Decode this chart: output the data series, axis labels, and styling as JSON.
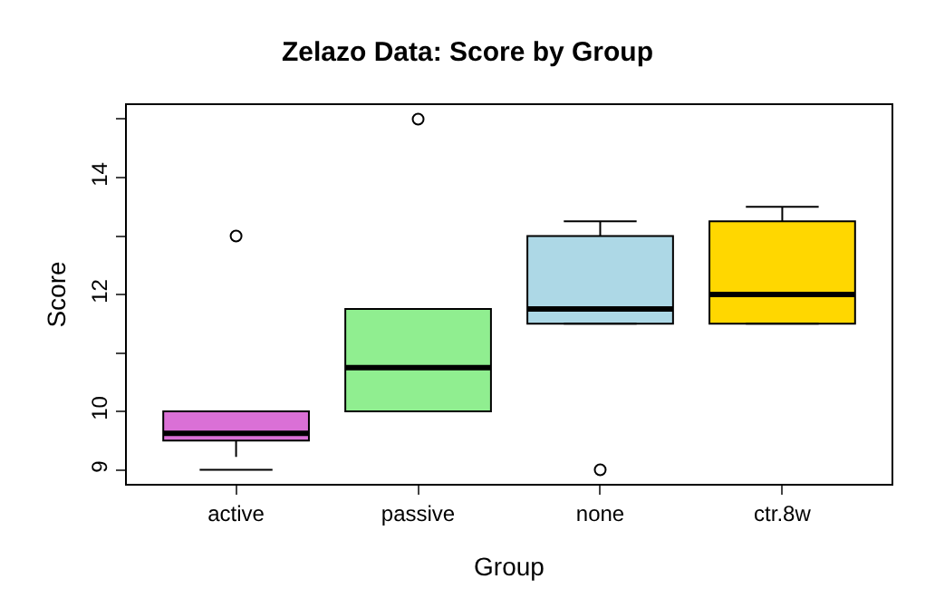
{
  "chart_data": {
    "type": "box",
    "title": "Zelazo Data: Score by Group",
    "xlabel": "Group",
    "ylabel": "Score",
    "categories": [
      "active",
      "passive",
      "none",
      "ctr.8w"
    ],
    "colors": [
      "#da70d6",
      "#90ee90",
      "#add8e6",
      "#ffd700"
    ],
    "boxes": [
      {
        "low": 9,
        "q1": 9.5,
        "median": 9.625,
        "q3": 10,
        "high": 10,
        "outliers": [
          13
        ]
      },
      {
        "low": 10,
        "q1": 10,
        "median": 10.75,
        "q3": 11.75,
        "high": 11.75,
        "outliers": [
          15
        ]
      },
      {
        "low": 11.5,
        "q1": 11.5,
        "median": 11.75,
        "q3": 13,
        "high": 13.25,
        "outliers": [
          9
        ]
      },
      {
        "low": 11.5,
        "q1": 11.5,
        "median": 12,
        "q3": 13.25,
        "high": 13.5
      }
    ],
    "ylim": [
      8.76,
      15.24
    ],
    "yticks": [
      9,
      10,
      {
        "value": 11,
        "label": null
      },
      12,
      {
        "value": 13,
        "label": null
      },
      14,
      {
        "value": 15,
        "label": null
      }
    ]
  }
}
